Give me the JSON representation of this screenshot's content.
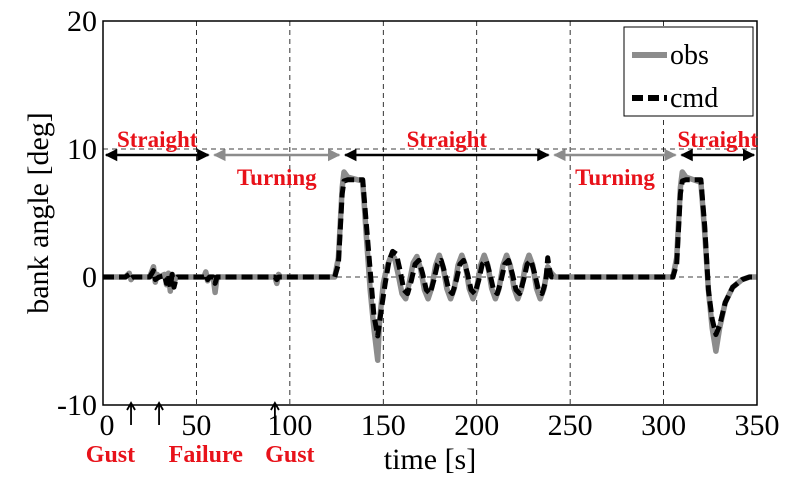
{
  "chart_data": {
    "type": "line",
    "title": "",
    "xlabel": "time [s]",
    "ylabel": "bank angle [deg]",
    "xlim": [
      0,
      350
    ],
    "ylim": [
      -10,
      20
    ],
    "xticks": [
      0,
      50,
      100,
      150,
      200,
      250,
      300,
      350
    ],
    "yticks": [
      -10,
      0,
      10,
      20
    ],
    "xtick_labels": [
      "0",
      "50",
      "100",
      "150",
      "200",
      "250",
      "300",
      "350"
    ],
    "ytick_labels": [
      "-10",
      "0",
      "10",
      "20"
    ],
    "grid": "dashed vertical lines at x ticks, dashed horizontal lines at y = 0 and y = 10",
    "legend_position": "top-right",
    "series": [
      {
        "name": "obs",
        "color": "#8c8c8c",
        "style": "solid",
        "points": [
          [
            0,
            0
          ],
          [
            12,
            0
          ],
          [
            14,
            0.3
          ],
          [
            15,
            -0.2
          ],
          [
            16,
            0
          ],
          [
            25,
            0
          ],
          [
            27,
            0.8
          ],
          [
            28,
            -0.4
          ],
          [
            29,
            0.2
          ],
          [
            30,
            0
          ],
          [
            33,
            0.2
          ],
          [
            34,
            -0.6
          ],
          [
            35,
            0.3
          ],
          [
            36,
            -1.1
          ],
          [
            37,
            0.2
          ],
          [
            38,
            -0.5
          ],
          [
            39,
            0
          ],
          [
            54,
            0
          ],
          [
            55,
            0.4
          ],
          [
            56,
            -0.3
          ],
          [
            57,
            0
          ],
          [
            59,
            0
          ],
          [
            60,
            -1.2
          ],
          [
            61,
            0
          ],
          [
            92,
            0
          ],
          [
            93,
            -0.5
          ],
          [
            94,
            0.2
          ],
          [
            95,
            0
          ],
          [
            124,
            0
          ],
          [
            126,
            1.5
          ],
          [
            128,
            7.0
          ],
          [
            129,
            8.2
          ],
          [
            131,
            7.8
          ],
          [
            136,
            7.6
          ],
          [
            139,
            7.5
          ],
          [
            141,
            3.0
          ],
          [
            143,
            -1.0
          ],
          [
            145,
            -4.0
          ],
          [
            147,
            -6.5
          ],
          [
            148,
            -3.5
          ],
          [
            150,
            -0.5
          ],
          [
            152,
            0.8
          ],
          [
            154,
            1.6
          ],
          [
            156,
            1.5
          ],
          [
            158,
            0.2
          ],
          [
            160,
            -1.3
          ],
          [
            162,
            -1.7
          ],
          [
            164,
            -0.4
          ],
          [
            166,
            1.1
          ],
          [
            168,
            1.6
          ],
          [
            170,
            0.6
          ],
          [
            172,
            -1.0
          ],
          [
            174,
            -1.7
          ],
          [
            176,
            -0.8
          ],
          [
            178,
            0.9
          ],
          [
            180,
            1.7
          ],
          [
            182,
            0.8
          ],
          [
            184,
            -0.9
          ],
          [
            186,
            -1.7
          ],
          [
            188,
            -0.9
          ],
          [
            190,
            0.9
          ],
          [
            192,
            1.7
          ],
          [
            194,
            0.9
          ],
          [
            196,
            -0.9
          ],
          [
            198,
            -1.7
          ],
          [
            200,
            -0.9
          ],
          [
            202,
            0.9
          ],
          [
            204,
            1.7
          ],
          [
            206,
            0.9
          ],
          [
            208,
            -0.9
          ],
          [
            210,
            -1.7
          ],
          [
            212,
            -0.9
          ],
          [
            214,
            0.9
          ],
          [
            216,
            1.7
          ],
          [
            218,
            0.9
          ],
          [
            220,
            -0.9
          ],
          [
            222,
            -1.7
          ],
          [
            224,
            -0.9
          ],
          [
            226,
            0.9
          ],
          [
            228,
            1.7
          ],
          [
            230,
            0.9
          ],
          [
            232,
            -0.9
          ],
          [
            234,
            -1.7
          ],
          [
            236,
            -0.9
          ],
          [
            238,
            0.8
          ],
          [
            240,
            0.3
          ],
          [
            242,
            0
          ],
          [
            305,
            0
          ],
          [
            307,
            1.5
          ],
          [
            309,
            7.0
          ],
          [
            310,
            8.2
          ],
          [
            312,
            7.8
          ],
          [
            318,
            7.5
          ],
          [
            320,
            7.4
          ],
          [
            322,
            3.5
          ],
          [
            324,
            -1.0
          ],
          [
            326,
            -4.0
          ],
          [
            328,
            -5.8
          ],
          [
            330,
            -4.0
          ],
          [
            333,
            -2.0
          ],
          [
            337,
            -0.8
          ],
          [
            342,
            -0.2
          ],
          [
            346,
            0
          ],
          [
            350,
            0
          ]
        ]
      },
      {
        "name": "cmd",
        "color": "#000000",
        "style": "dashed",
        "points": [
          [
            0,
            0
          ],
          [
            12,
            0
          ],
          [
            14,
            0.2
          ],
          [
            15,
            -0.1
          ],
          [
            16,
            0
          ],
          [
            25,
            0
          ],
          [
            27,
            0.5
          ],
          [
            28,
            -0.2
          ],
          [
            30,
            0
          ],
          [
            33,
            0.1
          ],
          [
            34,
            -0.5
          ],
          [
            35,
            0.2
          ],
          [
            36,
            -0.8
          ],
          [
            37,
            0.2
          ],
          [
            38,
            -0.8
          ],
          [
            39,
            -0.2
          ],
          [
            40,
            0
          ],
          [
            54,
            0
          ],
          [
            55,
            0.2
          ],
          [
            56,
            -0.2
          ],
          [
            57,
            0
          ],
          [
            59,
            0
          ],
          [
            60,
            -0.5
          ],
          [
            61,
            0
          ],
          [
            92,
            0
          ],
          [
            93,
            -0.2
          ],
          [
            94,
            0
          ],
          [
            124,
            0
          ],
          [
            126,
            1.0
          ],
          [
            128,
            6.5
          ],
          [
            129,
            7.5
          ],
          [
            131,
            7.6
          ],
          [
            139,
            7.6
          ],
          [
            141,
            4.0
          ],
          [
            143,
            0.5
          ],
          [
            145,
            -3.0
          ],
          [
            147,
            -4.6
          ],
          [
            149,
            -2.5
          ],
          [
            151,
            -0.5
          ],
          [
            153,
            1.2
          ],
          [
            155,
            2.0
          ],
          [
            157,
            1.8
          ],
          [
            159,
            0.5
          ],
          [
            161,
            -1.0
          ],
          [
            163,
            -1.3
          ],
          [
            165,
            -0.3
          ],
          [
            167,
            1.0
          ],
          [
            169,
            1.3
          ],
          [
            171,
            0.3
          ],
          [
            173,
            -1.0
          ],
          [
            175,
            -1.3
          ],
          [
            177,
            -0.3
          ],
          [
            179,
            1.0
          ],
          [
            181,
            1.3
          ],
          [
            183,
            0.3
          ],
          [
            185,
            -1.0
          ],
          [
            187,
            -1.3
          ],
          [
            189,
            -0.3
          ],
          [
            191,
            1.0
          ],
          [
            193,
            1.3
          ],
          [
            195,
            0.3
          ],
          [
            197,
            -1.0
          ],
          [
            199,
            -1.3
          ],
          [
            201,
            -0.3
          ],
          [
            203,
            1.0
          ],
          [
            205,
            1.3
          ],
          [
            207,
            0.3
          ],
          [
            209,
            -1.0
          ],
          [
            211,
            -1.3
          ],
          [
            213,
            -0.3
          ],
          [
            215,
            1.0
          ],
          [
            217,
            1.3
          ],
          [
            219,
            0.3
          ],
          [
            221,
            -1.0
          ],
          [
            223,
            -1.3
          ],
          [
            225,
            -0.3
          ],
          [
            227,
            1.0
          ],
          [
            229,
            1.3
          ],
          [
            231,
            0.3
          ],
          [
            233,
            -1.0
          ],
          [
            235,
            -1.3
          ],
          [
            237,
            -0.3
          ],
          [
            238,
            1.5
          ],
          [
            239,
            0.5
          ],
          [
            240,
            0
          ],
          [
            305,
            0
          ],
          [
            307,
            1.0
          ],
          [
            309,
            6.5
          ],
          [
            310,
            7.5
          ],
          [
            312,
            7.6
          ],
          [
            320,
            7.6
          ],
          [
            322,
            4.0
          ],
          [
            324,
            -1.0
          ],
          [
            326,
            -3.3
          ],
          [
            328,
            -4.5
          ],
          [
            330,
            -3.8
          ],
          [
            333,
            -2.0
          ],
          [
            337,
            -0.8
          ],
          [
            342,
            -0.2
          ],
          [
            346,
            0
          ],
          [
            350,
            0
          ]
        ]
      }
    ],
    "segments": [
      {
        "label": "Straight",
        "from": 0,
        "to": 58,
        "color": "#000000",
        "label_at": "above"
      },
      {
        "label": "Turning",
        "from": 58,
        "to": 128,
        "color": "#8c8c8c",
        "label_at": "below"
      },
      {
        "label": "Straight",
        "from": 128,
        "to": 240,
        "color": "#000000",
        "label_at": "above"
      },
      {
        "label": "Turning",
        "from": 240,
        "to": 308,
        "color": "#8c8c8c",
        "label_at": "below"
      },
      {
        "label": "Straight",
        "from": 308,
        "to": 350,
        "color": "#000000",
        "label_at": "above"
      }
    ],
    "segment_arrow_y": 10,
    "events": [
      {
        "label": "Gust",
        "arrows": [
          15
        ]
      },
      {
        "label": "Failure",
        "arrows": [
          30
        ]
      },
      {
        "label": "Gust",
        "arrows": [
          92
        ]
      }
    ],
    "annotation_color": "#e8121a"
  }
}
